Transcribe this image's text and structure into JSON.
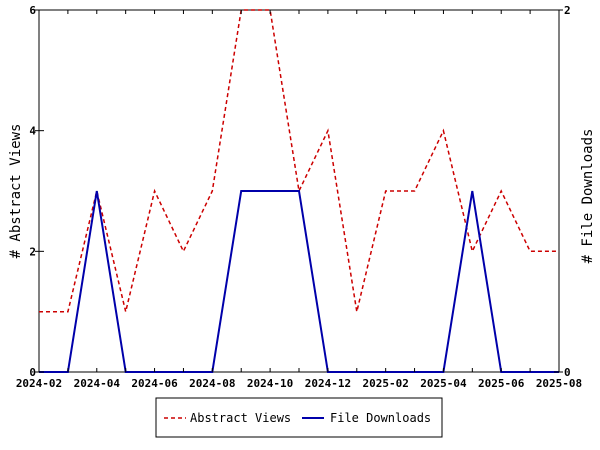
{
  "chart_data": {
    "type": "line",
    "x": [
      "2024-02",
      "2024-03",
      "2024-04",
      "2024-05",
      "2024-06",
      "2024-07",
      "2024-08",
      "2024-09",
      "2024-10",
      "2024-11",
      "2024-12",
      "2025-01",
      "2025-02",
      "2025-03",
      "2025-04",
      "2025-05",
      "2025-06",
      "2025-07",
      "2025-08"
    ],
    "x_tick_labels": [
      "2024-02",
      "2024-04",
      "2024-06",
      "2024-08",
      "2024-10",
      "2024-12",
      "2025-02",
      "2025-04",
      "2025-06",
      "2025-08"
    ],
    "ylabel": "# Abstract Views",
    "y2label": "# File Downloads",
    "ylim": [
      0,
      6
    ],
    "y2lim": [
      0,
      2
    ],
    "y_ticks": [
      "0",
      "2",
      "4",
      "6"
    ],
    "y2_ticks": [
      "0",
      "2"
    ],
    "legend_position": "bottom",
    "series": [
      {
        "name": "Abstract Views",
        "axis": "left",
        "color": "#cc0000",
        "dash": true,
        "values": [
          1,
          1,
          3,
          1,
          3,
          2,
          3,
          6,
          6,
          3,
          4,
          1,
          3,
          3,
          4,
          2,
          3,
          2,
          2
        ]
      },
      {
        "name": "File Downloads",
        "axis": "right",
        "color": "#0000aa",
        "dash": false,
        "values": [
          0,
          0,
          1,
          0,
          0,
          0,
          0,
          1,
          1,
          1,
          0,
          0,
          0,
          0,
          0,
          1,
          0,
          0,
          0
        ]
      }
    ]
  }
}
